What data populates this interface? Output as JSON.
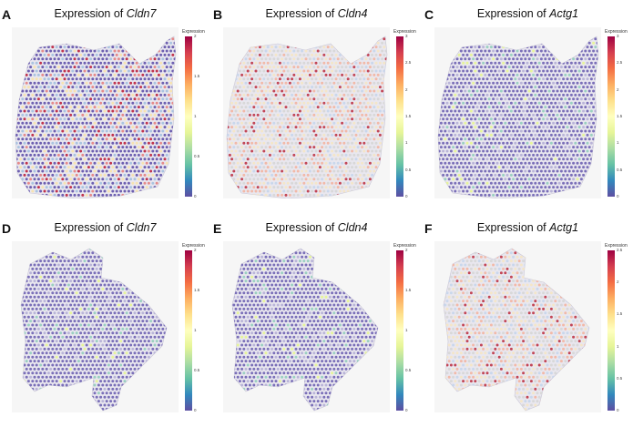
{
  "panels": [
    {
      "letter": "A",
      "title_prefix": "Expression of ",
      "gene": "Cldn7",
      "legend_title": "Expression",
      "ticks": [
        "2",
        "1.5",
        "1",
        "0.5",
        "0"
      ],
      "max": 2.0,
      "shape": "upper",
      "palette": "purple-red"
    },
    {
      "letter": "B",
      "title_prefix": "Expression of ",
      "gene": "Cldn4",
      "legend_title": "Expression",
      "ticks": [
        "3",
        "2.5",
        "2",
        "1.5",
        "1",
        "0.5",
        "0"
      ],
      "max": 3.0,
      "shape": "upper",
      "palette": "warm"
    },
    {
      "letter": "C",
      "title_prefix": "Expression of ",
      "gene": "Actg1",
      "legend_title": "Expression",
      "ticks": [
        "3",
        "2.5",
        "2",
        "1.5",
        "1",
        "0.5",
        "0"
      ],
      "max": 3.0,
      "shape": "upper",
      "palette": "purple"
    },
    {
      "letter": "D",
      "title_prefix": "Expression of ",
      "gene": "Cldn7",
      "legend_title": "Expression",
      "ticks": [
        "2",
        "1.5",
        "1",
        "0.5",
        "0"
      ],
      "max": 2.0,
      "shape": "lower",
      "palette": "purple"
    },
    {
      "letter": "E",
      "title_prefix": "Expression of ",
      "gene": "Cldn4",
      "legend_title": "Expression",
      "ticks": [
        "2",
        "1.5",
        "1",
        "0.5",
        "0"
      ],
      "max": 2.0,
      "shape": "lower",
      "palette": "purple"
    },
    {
      "letter": "F",
      "title_prefix": "Expression of ",
      "gene": "Actg1",
      "legend_title": "Expression",
      "ticks": [
        "2.5",
        "2",
        "1.5",
        "1",
        "0.5",
        "0"
      ],
      "max": 2.5,
      "shape": "lower",
      "palette": "warm"
    }
  ],
  "colors": {
    "low": "#5e4fa2",
    "mid": "#ffffbf",
    "high": "#9e0142"
  }
}
